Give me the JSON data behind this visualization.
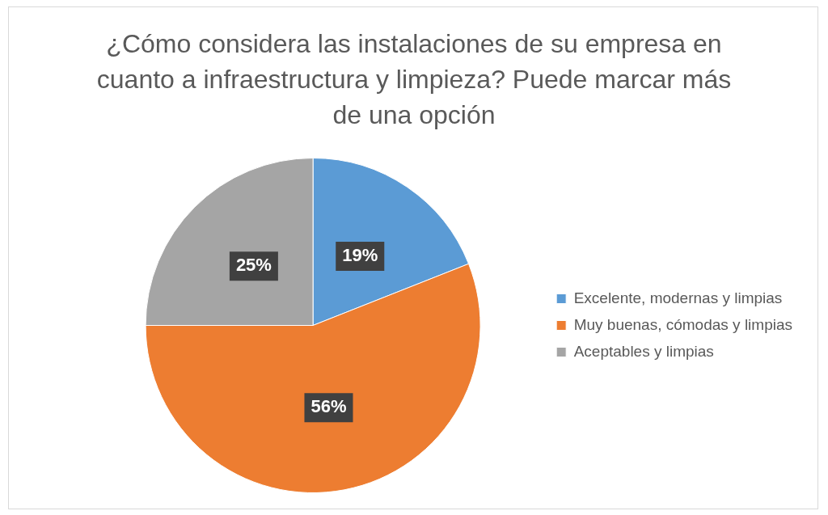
{
  "chart_data": {
    "type": "pie",
    "title": "¿Cómo considera las instalaciones de su empresa en cuanto a infraestructura y limpieza? Puede marcar más de una opción",
    "categories": [
      "Excelente, modernas y limpias",
      "Muy buenas, cómodas y limpias",
      "Aceptables y limpias"
    ],
    "values": [
      19,
      56,
      25
    ],
    "colors": [
      "#5b9bd5",
      "#ed7d31",
      "#a5a5a5"
    ],
    "value_labels": [
      "19%",
      "56%",
      "25%"
    ],
    "legend": "right"
  }
}
